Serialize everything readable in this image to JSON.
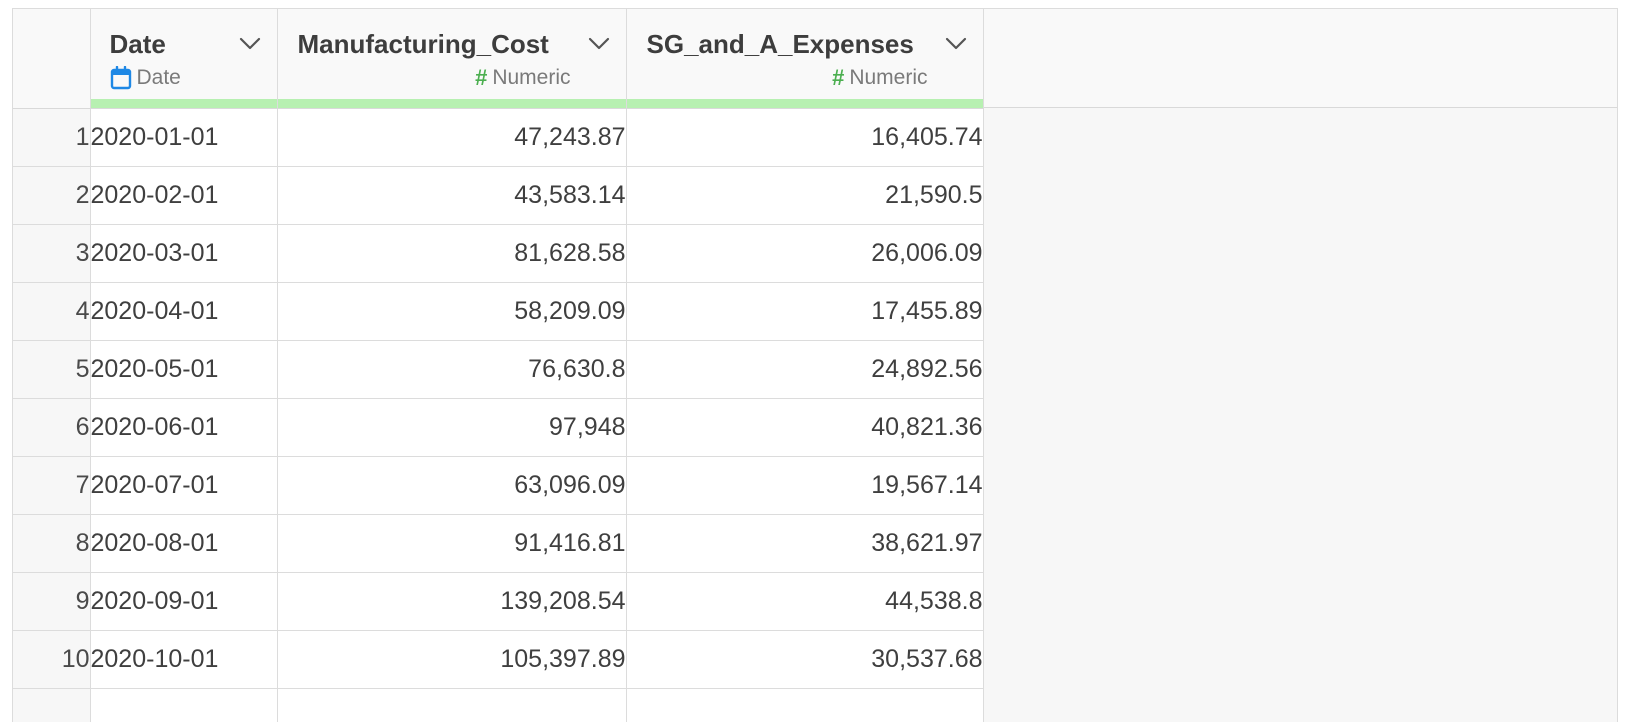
{
  "columns": [
    {
      "name": "Date",
      "type_label": "Date",
      "type_icon": "calendar-icon"
    },
    {
      "name": "Manufacturing_Cost",
      "type_label": "Numeric",
      "type_icon": "hash-icon"
    },
    {
      "name": "SG_and_A_Expenses",
      "type_label": "Numeric",
      "type_icon": "hash-icon"
    }
  ],
  "rows": [
    {
      "n": "1",
      "date": "2020-01-01",
      "mfg": "47,243.87",
      "sga": "16,405.74"
    },
    {
      "n": "2",
      "date": "2020-02-01",
      "mfg": "43,583.14",
      "sga": "21,590.5"
    },
    {
      "n": "3",
      "date": "2020-03-01",
      "mfg": "81,628.58",
      "sga": "26,006.09"
    },
    {
      "n": "4",
      "date": "2020-04-01",
      "mfg": "58,209.09",
      "sga": "17,455.89"
    },
    {
      "n": "5",
      "date": "2020-05-01",
      "mfg": "76,630.8",
      "sga": "24,892.56"
    },
    {
      "n": "6",
      "date": "2020-06-01",
      "mfg": "97,948",
      "sga": "40,821.36"
    },
    {
      "n": "7",
      "date": "2020-07-01",
      "mfg": "63,096.09",
      "sga": "19,567.14"
    },
    {
      "n": "8",
      "date": "2020-08-01",
      "mfg": "91,416.81",
      "sga": "38,621.97"
    },
    {
      "n": "9",
      "date": "2020-09-01",
      "mfg": "139,208.54",
      "sga": "44,538.8"
    },
    {
      "n": "10",
      "date": "2020-10-01",
      "mfg": "105,397.89",
      "sga": "30,537.68"
    }
  ],
  "colors": {
    "quality_bar": "#b7f0b1",
    "calendar_icon": "#1e88e5",
    "hash_icon": "#4caf50"
  }
}
